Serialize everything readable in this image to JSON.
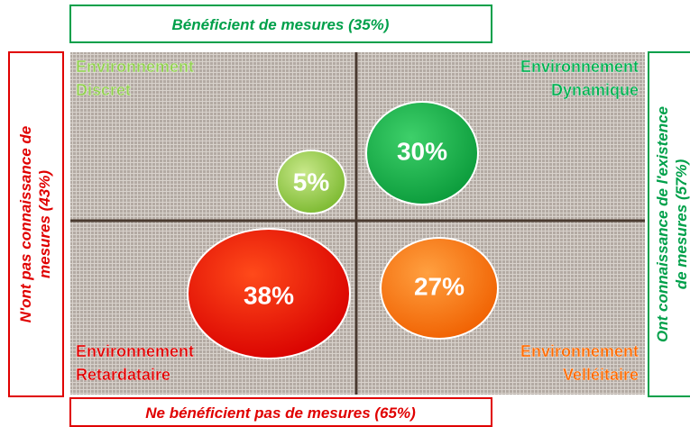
{
  "top": {
    "label": "Bénéficient de mesures (35%)"
  },
  "bottom": {
    "label": "Ne bénéficient pas de mesures (65%)"
  },
  "left": {
    "lines": [
      "N'ont pas connaissance de",
      "mesures (43%)"
    ]
  },
  "right": {
    "lines": [
      "Ont connaissance de l'existence",
      "de mesures (57%)"
    ]
  },
  "quadrants": [
    {
      "lines": [
        "Environnement",
        "Discret"
      ]
    },
    {
      "lines": [
        "Environnement",
        "Dynamique"
      ]
    },
    {
      "lines": [
        "Environnement",
        "Retardataire"
      ]
    },
    {
      "lines": [
        "Environnement",
        "Velléitaire"
      ]
    }
  ],
  "bubbles": [
    {
      "label": "5%"
    },
    {
      "label": "30%"
    },
    {
      "label": "38%"
    },
    {
      "label": "27%"
    }
  ]
}
